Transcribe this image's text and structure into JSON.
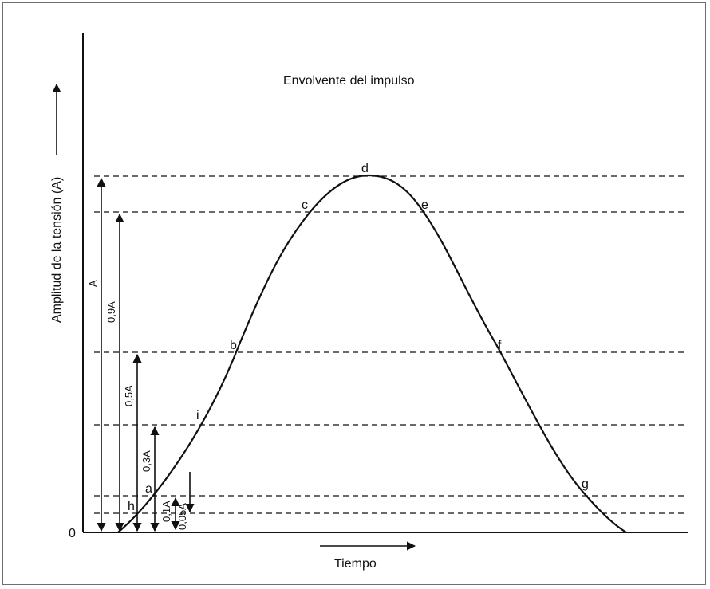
{
  "diagram": {
    "title": "Envolvente del impulso",
    "y_axis_label": "Amplitud de la tensión (A)",
    "x_axis_label": "Tiempo",
    "origin_label": "0",
    "point_labels": {
      "a": "a",
      "b": "b",
      "c": "c",
      "d": "d",
      "e": "e",
      "f": "f",
      "g": "g",
      "h": "h",
      "i": "i"
    },
    "amplitude_labels": {
      "A": "A",
      "0.9A": "0,9A",
      "0.5A": "0,5A",
      "0.3A": "0,3A",
      "0.1A": "0,1A",
      "0.05A": "0,05A"
    },
    "reference_levels": [
      1.0,
      0.9,
      0.5,
      0.3,
      0.1,
      0.05
    ],
    "colors": {
      "line": "#111111",
      "frame": "#6e6e6e",
      "background": "#ffffff"
    }
  }
}
